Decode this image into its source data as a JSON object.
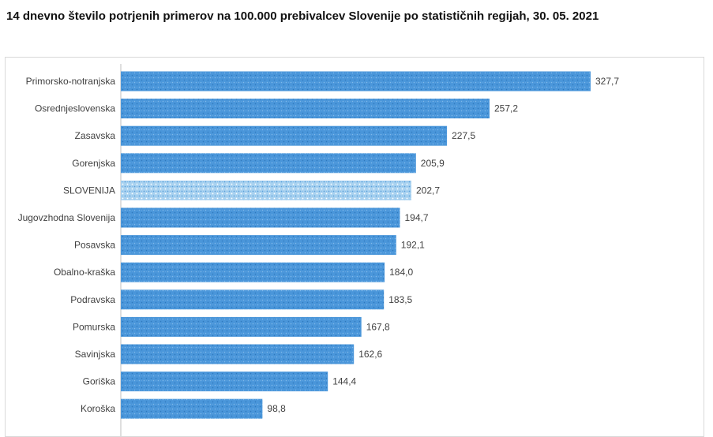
{
  "header": {
    "title": "14 dnevno število potrjenih primerov na 100.000 prebivalcev Slovenije po statističnih regijah, 30. 05. 2021"
  },
  "colors": {
    "bar": "#4a96da",
    "bar_highlight": "#a9d2f0",
    "axis": "#bfbfbf"
  },
  "chart_data": {
    "type": "bar",
    "orientation": "horizontal",
    "title": "14 dnevno število potrjenih primerov na 100.000 prebivalcev Slovenije po statističnih regijah, 30. 05. 2021",
    "categories": [
      "Primorsko-notranjska",
      "Osrednjeslovenska",
      "Zasavska",
      "Gorenjska",
      "SLOVENIJA",
      "Jugovzhodna Slovenija",
      "Posavska",
      "Obalno-kraška",
      "Podravska",
      "Pomurska",
      "Savinjska",
      "Goriška",
      "Koroška"
    ],
    "values": [
      327.7,
      257.2,
      227.5,
      205.9,
      202.7,
      194.7,
      192.1,
      184.0,
      183.5,
      167.8,
      162.6,
      144.4,
      98.8
    ],
    "value_labels": [
      "327,7",
      "257,2",
      "227,5",
      "205,9",
      "202,7",
      "194,7",
      "192,1",
      "184,0",
      "183,5",
      "167,8",
      "162,6",
      "144,4",
      "98,8"
    ],
    "highlight": "SLOVENIJA",
    "xlim": [
      0,
      327.7
    ],
    "xlabel": "",
    "ylabel": "",
    "grid": false,
    "legend": "none"
  }
}
